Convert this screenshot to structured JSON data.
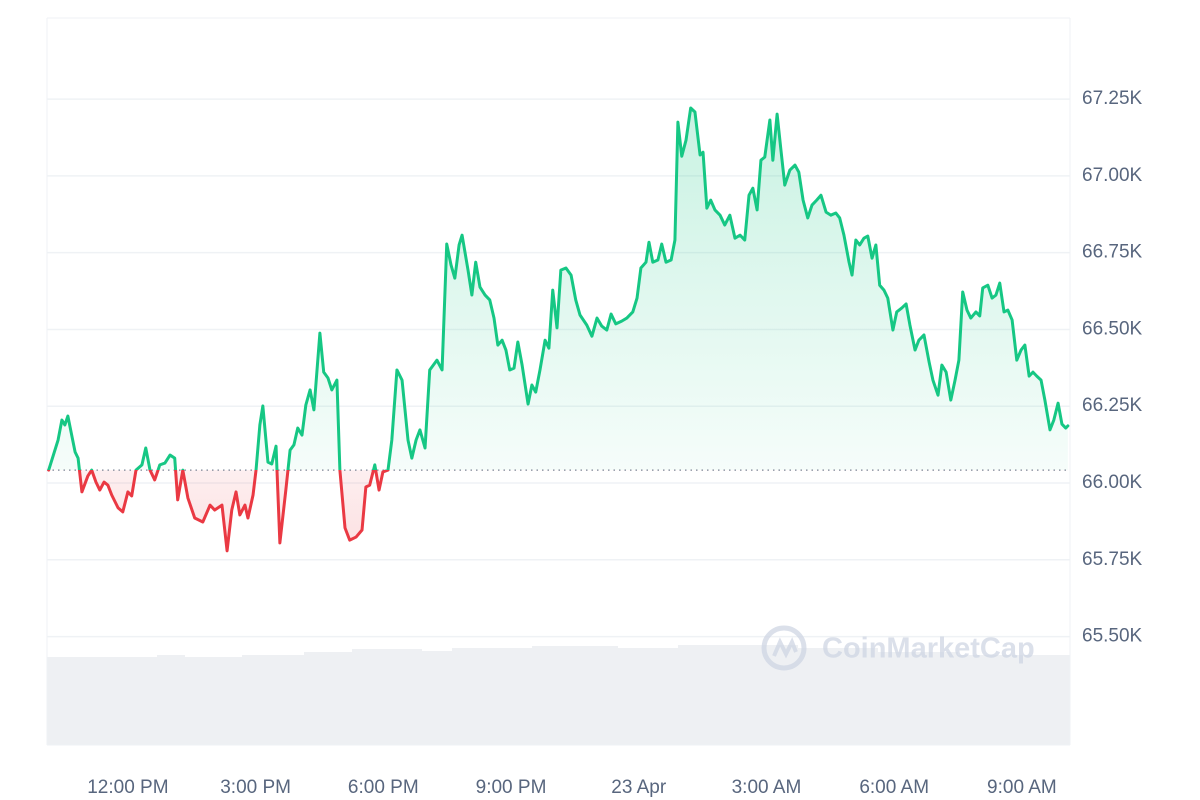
{
  "chart_data": {
    "type": "line",
    "x": [
      10.14,
      10.36,
      10.45,
      10.52,
      10.59,
      10.76,
      10.83,
      10.92,
      11.06,
      11.15,
      11.25,
      11.34,
      11.44,
      11.53,
      11.62,
      11.77,
      11.88,
      12.0,
      12.09,
      12.19,
      12.33,
      12.42,
      12.52,
      12.63,
      12.75,
      12.87,
      12.99,
      13.1,
      13.17,
      13.29,
      13.41,
      13.57,
      13.76,
      13.93,
      14.04,
      14.21,
      14.33,
      14.44,
      14.54,
      14.63,
      14.75,
      14.82,
      14.94,
      15.01,
      15.1,
      15.17,
      15.29,
      15.38,
      15.48,
      15.57,
      15.71,
      15.81,
      15.9,
      15.99,
      16.09,
      16.18,
      16.28,
      16.37,
      16.51,
      16.6,
      16.7,
      16.79,
      16.91,
      16.98,
      17.1,
      17.21,
      17.36,
      17.5,
      17.59,
      17.68,
      17.8,
      17.9,
      17.99,
      18.11,
      18.2,
      18.32,
      18.44,
      18.58,
      18.67,
      18.77,
      18.86,
      18.98,
      19.09,
      19.26,
      19.38,
      19.49,
      19.59,
      19.68,
      19.78,
      19.85,
      19.99,
      20.08,
      20.17,
      20.27,
      20.39,
      20.5,
      20.6,
      20.69,
      20.79,
      20.88,
      20.97,
      21.07,
      21.16,
      21.26,
      21.4,
      21.49,
      21.58,
      21.68,
      21.8,
      21.89,
      21.98,
      22.08,
      22.17,
      22.29,
      22.41,
      22.52,
      22.62,
      22.78,
      22.9,
      23.02,
      23.13,
      23.25,
      23.35,
      23.46,
      23.6,
      23.72,
      23.86,
      23.96,
      24.05,
      24.17,
      24.24,
      24.33,
      24.45,
      24.54,
      24.64,
      24.76,
      24.85,
      24.92,
      25.01,
      25.11,
      25.22,
      25.32,
      25.44,
      25.51,
      25.6,
      25.69,
      25.79,
      25.91,
      26.02,
      26.14,
      26.26,
      26.38,
      26.49,
      26.59,
      26.68,
      26.78,
      26.87,
      26.96,
      27.08,
      27.15,
      27.25,
      27.34,
      27.43,
      27.55,
      27.67,
      27.76,
      27.86,
      27.97,
      28.07,
      28.18,
      28.28,
      28.4,
      28.51,
      28.63,
      28.72,
      28.82,
      28.94,
      29.01,
      29.1,
      29.19,
      29.29,
      29.38,
      29.48,
      29.57,
      29.66,
      29.76,
      29.85,
      29.97,
      30.06,
      30.18,
      30.28,
      30.37,
      30.49,
      30.58,
      30.7,
      30.82,
      30.91,
      31.03,
      31.12,
      31.22,
      31.33,
      31.43,
      31.52,
      31.61,
      31.71,
      31.8,
      31.92,
      32.01,
      32.08,
      32.2,
      32.3,
      32.39,
      32.48,
      32.58,
      32.67,
      32.77,
      32.88,
      32.98,
      33.07,
      33.17,
      33.26,
      33.35,
      33.45,
      33.54,
      33.66,
      33.75,
      33.85,
      33.94,
      34.03,
      34.08
    ],
    "series": [
      {
        "values": [
          66042,
          66140,
          66205,
          66189,
          66218,
          66101,
          66081,
          65971,
          66023,
          66042,
          66003,
          65977,
          66003,
          65993,
          65961,
          65919,
          65906,
          65971,
          65958,
          66042,
          66059,
          66114,
          66042,
          66010,
          66059,
          66065,
          66091,
          66081,
          65945,
          66042,
          65951,
          65886,
          65873,
          65928,
          65912,
          65928,
          65779,
          65912,
          65971,
          65896,
          65928,
          65886,
          65961,
          66042,
          66189,
          66251,
          66068,
          66062,
          66120,
          65805,
          65977,
          66107,
          66124,
          66179,
          66156,
          66254,
          66303,
          66238,
          66488,
          66361,
          66342,
          66303,
          66335,
          66042,
          65854,
          65814,
          65824,
          65847,
          65987,
          65993,
          66059,
          65977,
          66036,
          66042,
          66140,
          66368,
          66335,
          66140,
          66081,
          66140,
          66173,
          66114,
          66368,
          66400,
          66368,
          66778,
          66710,
          66667,
          66775,
          66807,
          66693,
          66612,
          66719,
          66638,
          66612,
          66596,
          66537,
          66449,
          66465,
          66433,
          66368,
          66374,
          66459,
          66384,
          66257,
          66319,
          66296,
          66368,
          66465,
          66439,
          66628,
          66505,
          66693,
          66700,
          66677,
          66596,
          66547,
          66514,
          66478,
          66537,
          66511,
          66498,
          66550,
          66518,
          66527,
          66537,
          66557,
          66602,
          66700,
          66719,
          66784,
          66719,
          66726,
          66778,
          66719,
          66726,
          66791,
          67175,
          67064,
          67116,
          67221,
          67208,
          67068,
          67077,
          66895,
          66921,
          66889,
          66872,
          66840,
          66872,
          66797,
          66807,
          66791,
          66937,
          66960,
          66889,
          67051,
          67061,
          67182,
          67051,
          67201,
          67084,
          66970,
          67019,
          67035,
          67012,
          66921,
          66863,
          66905,
          66921,
          66937,
          66882,
          66872,
          66879,
          66863,
          66807,
          66719,
          66677,
          66791,
          66775,
          66797,
          66804,
          66732,
          66775,
          66644,
          66628,
          66602,
          66498,
          66557,
          66570,
          66583,
          66514,
          66433,
          66465,
          66482,
          66394,
          66335,
          66286,
          66384,
          66361,
          66270,
          66335,
          66400,
          66622,
          66563,
          66537,
          66557,
          66544,
          66635,
          66644,
          66602,
          66612,
          66651,
          66557,
          66563,
          66531,
          66400,
          66433,
          66449,
          66348,
          66361,
          66348,
          66335,
          66270,
          66173,
          66205,
          66260,
          66192,
          66179,
          66186
        ]
      }
    ],
    "baseline": 66042,
    "up_color": "#16c784",
    "down_color": "#ea3943",
    "xlim": [
      10.1,
      34.13
    ],
    "xticks": [
      {
        "value": 12,
        "label": "12:00 PM"
      },
      {
        "value": 15,
        "label": "3:00 PM"
      },
      {
        "value": 18,
        "label": "6:00 PM"
      },
      {
        "value": 21,
        "label": "9:00 PM"
      },
      {
        "value": 24,
        "label": "23 Apr"
      },
      {
        "value": 27,
        "label": "3:00 AM"
      },
      {
        "value": 30,
        "label": "6:00 AM"
      },
      {
        "value": 33,
        "label": "9:00 AM"
      }
    ],
    "ylim": [
      65147,
      67514
    ],
    "yticks": [
      {
        "value": 65500,
        "label": "65.50K"
      },
      {
        "value": 65750,
        "label": "65.75K"
      },
      {
        "value": 66000,
        "label": "66.00K"
      },
      {
        "value": 66250,
        "label": "66.25K"
      },
      {
        "value": 66500,
        "label": "66.50K"
      },
      {
        "value": 66750,
        "label": "66.75K"
      },
      {
        "value": 67000,
        "label": "67.00K"
      },
      {
        "value": 67250,
        "label": "67.25K"
      }
    ],
    "grid": true,
    "watermark": "CoinMarketCap"
  }
}
